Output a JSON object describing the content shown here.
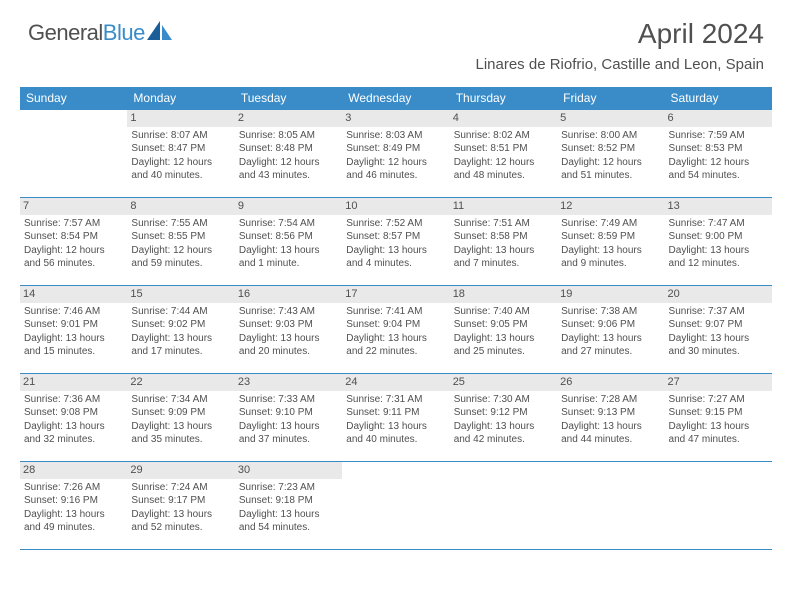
{
  "brand": {
    "name_part1": "General",
    "name_part2": "Blue"
  },
  "title": "April 2024",
  "location": "Linares de Riofrio, Castille and Leon, Spain",
  "colors": {
    "accent": "#3a8cc8",
    "daynum_bg": "#e9e9e9",
    "text": "#505050"
  },
  "daysOfWeek": [
    "Sunday",
    "Monday",
    "Tuesday",
    "Wednesday",
    "Thursday",
    "Friday",
    "Saturday"
  ],
  "weeks": [
    [
      null,
      {
        "n": "1",
        "sunrise": "8:07 AM",
        "sunset": "8:47 PM",
        "daylight": "12 hours and 40 minutes."
      },
      {
        "n": "2",
        "sunrise": "8:05 AM",
        "sunset": "8:48 PM",
        "daylight": "12 hours and 43 minutes."
      },
      {
        "n": "3",
        "sunrise": "8:03 AM",
        "sunset": "8:49 PM",
        "daylight": "12 hours and 46 minutes."
      },
      {
        "n": "4",
        "sunrise": "8:02 AM",
        "sunset": "8:51 PM",
        "daylight": "12 hours and 48 minutes."
      },
      {
        "n": "5",
        "sunrise": "8:00 AM",
        "sunset": "8:52 PM",
        "daylight": "12 hours and 51 minutes."
      },
      {
        "n": "6",
        "sunrise": "7:59 AM",
        "sunset": "8:53 PM",
        "daylight": "12 hours and 54 minutes."
      }
    ],
    [
      {
        "n": "7",
        "sunrise": "7:57 AM",
        "sunset": "8:54 PM",
        "daylight": "12 hours and 56 minutes."
      },
      {
        "n": "8",
        "sunrise": "7:55 AM",
        "sunset": "8:55 PM",
        "daylight": "12 hours and 59 minutes."
      },
      {
        "n": "9",
        "sunrise": "7:54 AM",
        "sunset": "8:56 PM",
        "daylight": "13 hours and 1 minute."
      },
      {
        "n": "10",
        "sunrise": "7:52 AM",
        "sunset": "8:57 PM",
        "daylight": "13 hours and 4 minutes."
      },
      {
        "n": "11",
        "sunrise": "7:51 AM",
        "sunset": "8:58 PM",
        "daylight": "13 hours and 7 minutes."
      },
      {
        "n": "12",
        "sunrise": "7:49 AM",
        "sunset": "8:59 PM",
        "daylight": "13 hours and 9 minutes."
      },
      {
        "n": "13",
        "sunrise": "7:47 AM",
        "sunset": "9:00 PM",
        "daylight": "13 hours and 12 minutes."
      }
    ],
    [
      {
        "n": "14",
        "sunrise": "7:46 AM",
        "sunset": "9:01 PM",
        "daylight": "13 hours and 15 minutes."
      },
      {
        "n": "15",
        "sunrise": "7:44 AM",
        "sunset": "9:02 PM",
        "daylight": "13 hours and 17 minutes."
      },
      {
        "n": "16",
        "sunrise": "7:43 AM",
        "sunset": "9:03 PM",
        "daylight": "13 hours and 20 minutes."
      },
      {
        "n": "17",
        "sunrise": "7:41 AM",
        "sunset": "9:04 PM",
        "daylight": "13 hours and 22 minutes."
      },
      {
        "n": "18",
        "sunrise": "7:40 AM",
        "sunset": "9:05 PM",
        "daylight": "13 hours and 25 minutes."
      },
      {
        "n": "19",
        "sunrise": "7:38 AM",
        "sunset": "9:06 PM",
        "daylight": "13 hours and 27 minutes."
      },
      {
        "n": "20",
        "sunrise": "7:37 AM",
        "sunset": "9:07 PM",
        "daylight": "13 hours and 30 minutes."
      }
    ],
    [
      {
        "n": "21",
        "sunrise": "7:36 AM",
        "sunset": "9:08 PM",
        "daylight": "13 hours and 32 minutes."
      },
      {
        "n": "22",
        "sunrise": "7:34 AM",
        "sunset": "9:09 PM",
        "daylight": "13 hours and 35 minutes."
      },
      {
        "n": "23",
        "sunrise": "7:33 AM",
        "sunset": "9:10 PM",
        "daylight": "13 hours and 37 minutes."
      },
      {
        "n": "24",
        "sunrise": "7:31 AM",
        "sunset": "9:11 PM",
        "daylight": "13 hours and 40 minutes."
      },
      {
        "n": "25",
        "sunrise": "7:30 AM",
        "sunset": "9:12 PM",
        "daylight": "13 hours and 42 minutes."
      },
      {
        "n": "26",
        "sunrise": "7:28 AM",
        "sunset": "9:13 PM",
        "daylight": "13 hours and 44 minutes."
      },
      {
        "n": "27",
        "sunrise": "7:27 AM",
        "sunset": "9:15 PM",
        "daylight": "13 hours and 47 minutes."
      }
    ],
    [
      {
        "n": "28",
        "sunrise": "7:26 AM",
        "sunset": "9:16 PM",
        "daylight": "13 hours and 49 minutes."
      },
      {
        "n": "29",
        "sunrise": "7:24 AM",
        "sunset": "9:17 PM",
        "daylight": "13 hours and 52 minutes."
      },
      {
        "n": "30",
        "sunrise": "7:23 AM",
        "sunset": "9:18 PM",
        "daylight": "13 hours and 54 minutes."
      },
      null,
      null,
      null,
      null
    ]
  ],
  "labels": {
    "sunrise": "Sunrise:",
    "sunset": "Sunset:",
    "daylight": "Daylight:"
  }
}
